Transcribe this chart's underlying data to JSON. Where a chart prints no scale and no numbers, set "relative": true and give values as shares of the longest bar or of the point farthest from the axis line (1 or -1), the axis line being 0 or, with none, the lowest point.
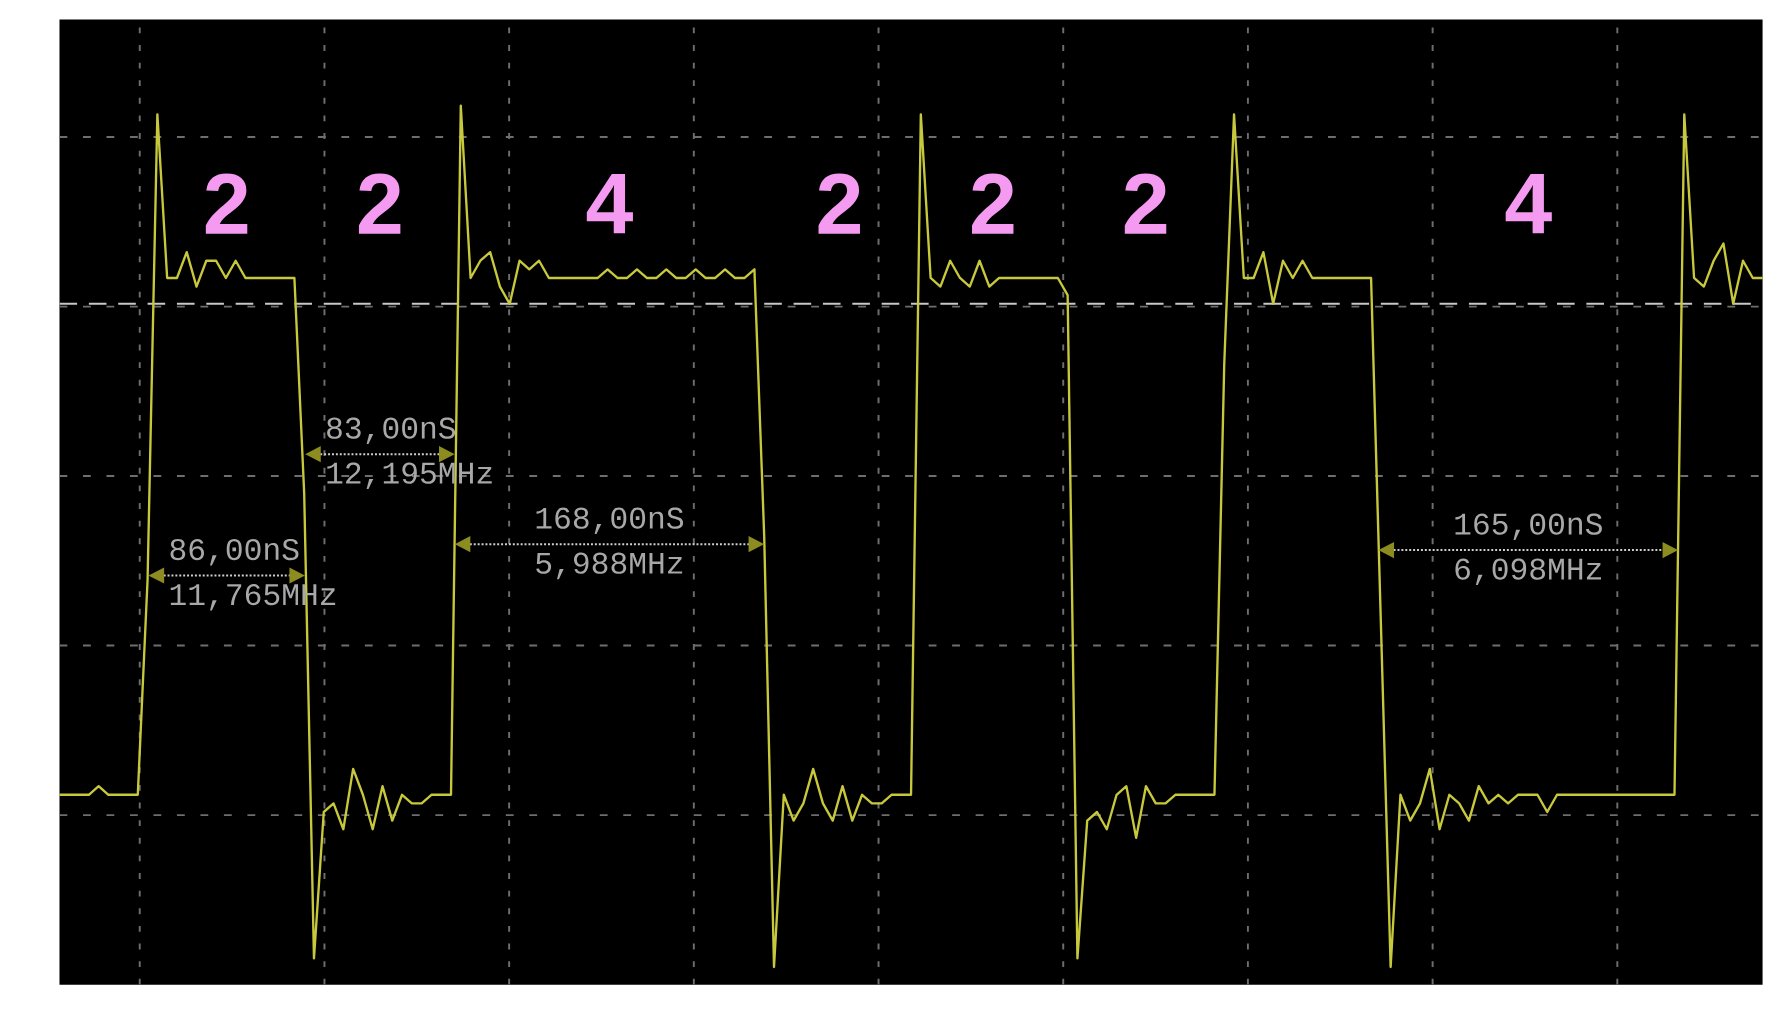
{
  "chart_data": {
    "type": "line",
    "relative": true,
    "categories": [
      null,
      null,
      null,
      null,
      null,
      null,
      null,
      null,
      null,
      null,
      null,
      null,
      null,
      null,
      null,
      null,
      null,
      null,
      null,
      null,
      null,
      null,
      null,
      null,
      null,
      null,
      null,
      null,
      null,
      null,
      null,
      null,
      null,
      null,
      null,
      null,
      null,
      null,
      null,
      null,
      null,
      null,
      null,
      null,
      null,
      null,
      null,
      null,
      null,
      null,
      null,
      null,
      null,
      null,
      null,
      null,
      null,
      null,
      null,
      null,
      null,
      null,
      null,
      null,
      null,
      null,
      null,
      null,
      null,
      null,
      null,
      null,
      null,
      null,
      null,
      null,
      null,
      null,
      null,
      null,
      null,
      null,
      null,
      null,
      null,
      null,
      null,
      null,
      null,
      null,
      null,
      null,
      null,
      null,
      null,
      null,
      null,
      null,
      null,
      null,
      null,
      null,
      null,
      null,
      null,
      null,
      null,
      null,
      null,
      null,
      null,
      null,
      null,
      null,
      null,
      null,
      null,
      null,
      null,
      null,
      null,
      null,
      null,
      null,
      null,
      null,
      null,
      null,
      null,
      null,
      null,
      null,
      null,
      null,
      null,
      null,
      null,
      null,
      null,
      null,
      null,
      null,
      null,
      null,
      null,
      null,
      null,
      null,
      null,
      null,
      null,
      null,
      null,
      null,
      null,
      null,
      null,
      null,
      null,
      null,
      null,
      null,
      null,
      null,
      null,
      null,
      null,
      null,
      null,
      null,
      null,
      null,
      null,
      null,
      null
    ],
    "series": [
      {
        "color": "#c8c83c",
        "values": [
          0.2,
          0.2,
          0.2,
          0.2,
          0.21,
          0.2,
          0.2,
          0.2,
          0.2,
          0.45,
          0.99,
          0.8,
          0.8,
          0.83,
          0.79,
          0.82,
          0.82,
          0.8,
          0.82,
          0.8,
          0.8,
          0.8,
          0.8,
          0.8,
          0.8,
          0.55,
          0.01,
          0.18,
          0.19,
          0.16,
          0.23,
          0.2,
          0.16,
          0.21,
          0.17,
          0.2,
          0.19,
          0.19,
          0.2,
          0.2,
          0.2,
          1,
          0.8,
          0.82,
          0.83,
          0.79,
          0.77,
          0.82,
          0.81,
          0.82,
          0.8,
          0.8,
          0.8,
          0.8,
          0.8,
          0.8,
          0.81,
          0.8,
          0.8,
          0.81,
          0.8,
          0.8,
          0.81,
          0.8,
          0.8,
          0.81,
          0.8,
          0.8,
          0.81,
          0.8,
          0.8,
          0.81,
          0.5,
          0,
          0.2,
          0.17,
          0.19,
          0.23,
          0.19,
          0.17,
          0.21,
          0.17,
          0.2,
          0.19,
          0.19,
          0.2,
          0.2,
          0.2,
          0.99,
          0.8,
          0.79,
          0.82,
          0.8,
          0.79,
          0.82,
          0.79,
          0.8,
          0.8,
          0.8,
          0.8,
          0.8,
          0.8,
          0.8,
          0.78,
          0.01,
          0.17,
          0.18,
          0.16,
          0.2,
          0.21,
          0.15,
          0.21,
          0.19,
          0.19,
          0.2,
          0.2,
          0.2,
          0.2,
          0.2,
          0.7,
          0.99,
          0.8,
          0.8,
          0.83,
          0.77,
          0.82,
          0.8,
          0.82,
          0.8,
          0.8,
          0.8,
          0.8,
          0.8,
          0.8,
          0.8,
          0.4,
          0,
          0.2,
          0.17,
          0.19,
          0.23,
          0.16,
          0.2,
          0.19,
          0.17,
          0.21,
          0.19,
          0.2,
          0.19,
          0.2,
          0.2,
          0.2,
          0.18,
          0.2,
          0.2,
          0.2,
          0.2,
          0.2,
          0.2,
          0.2,
          0.2,
          0.2,
          0.2,
          0.2,
          0.2,
          0.2,
          0.99,
          0.8,
          0.79,
          0.82,
          0.84,
          0.77,
          0.82,
          0.8,
          0.8
        ]
      }
    ],
    "grid": true,
    "ref_lines": [
      {
        "axis": "y",
        "value": 0.77,
        "color": "#c8c8c8",
        "line_style": "dashed"
      }
    ],
    "annotations": [
      "2",
      "2",
      "4",
      "2",
      "2",
      "2",
      "4",
      "86,00nS",
      "11,765MHz",
      "83,00nS",
      "12,195MHz",
      "168,00nS",
      "5,988MHz",
      "165,00nS",
      "6,098MHz"
    ]
  }
}
